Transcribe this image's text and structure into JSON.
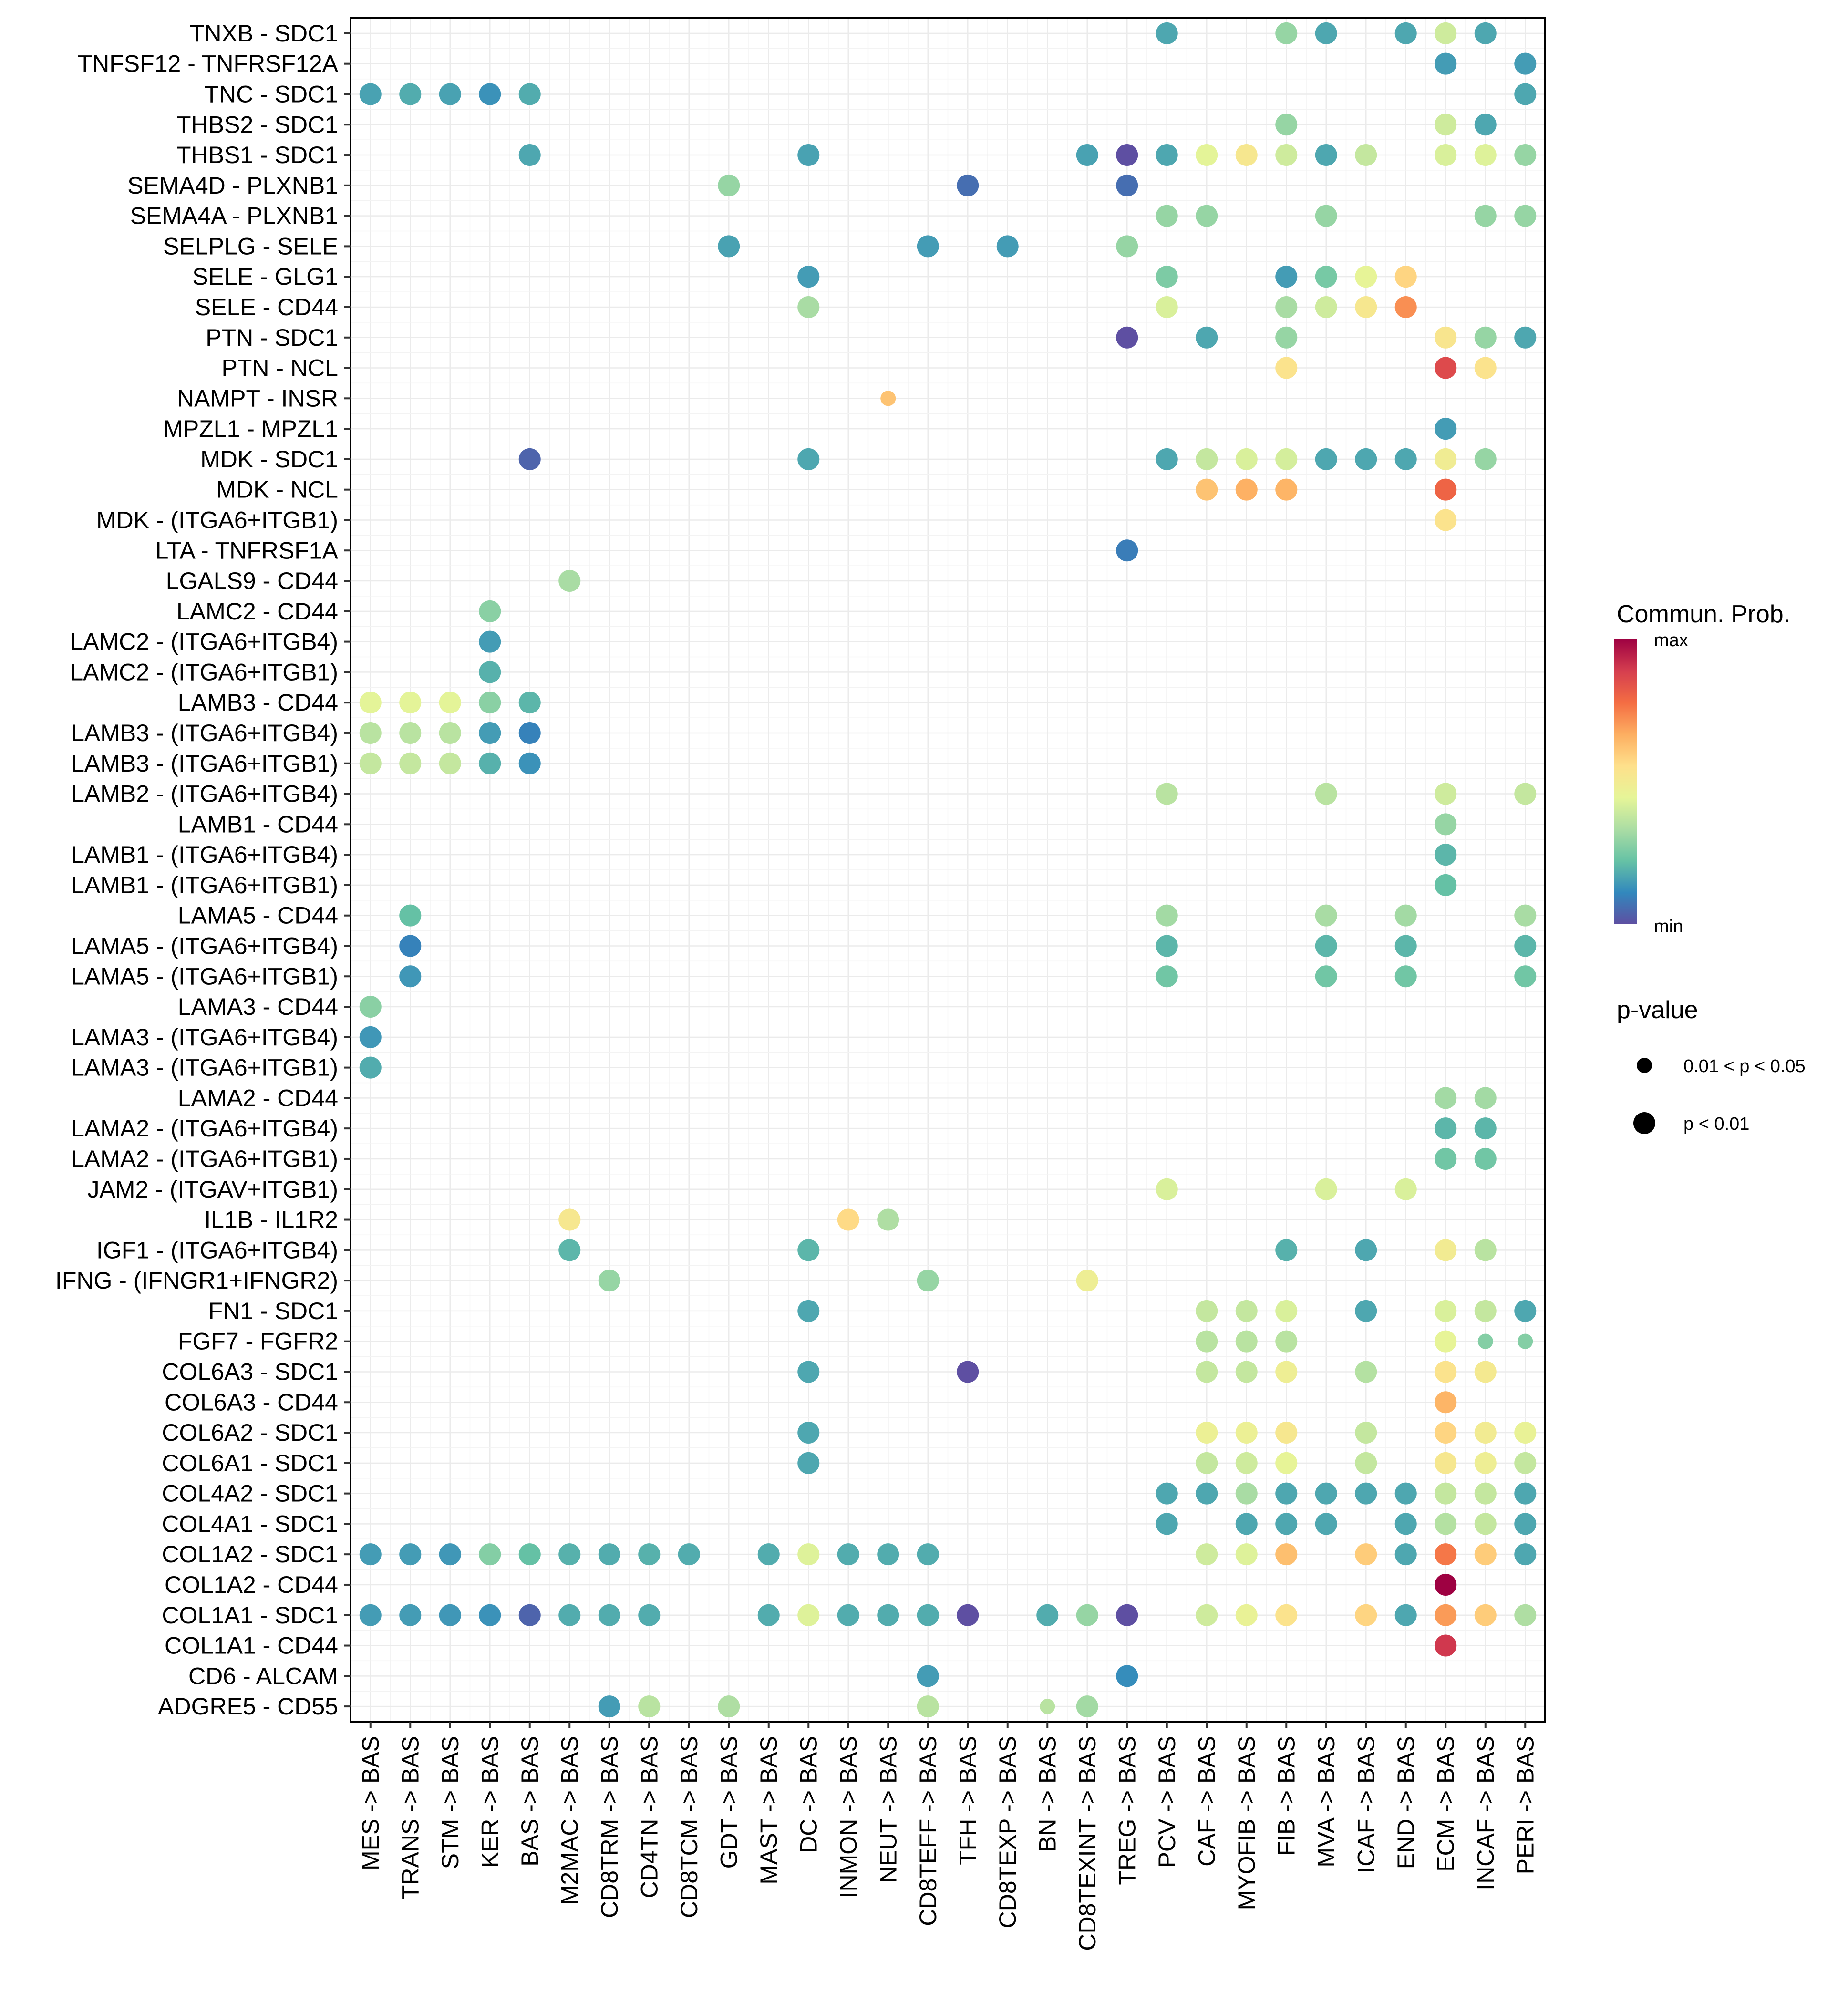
{
  "chart_data": {
    "type": "scatter",
    "subtype": "dot-matrix (bubble heatmap)",
    "title": "",
    "xlabel": "",
    "ylabel": "",
    "grid": true,
    "x_categories": [
      "MES -> BAS",
      "TRANS -> BAS",
      "STM -> BAS",
      "KER -> BAS",
      "BAS -> BAS",
      "M2MAC -> BAS",
      "CD8TRM -> BAS",
      "CD4TN -> BAS",
      "CD8TCM -> BAS",
      "GDT -> BAS",
      "MAST -> BAS",
      "DC -> BAS",
      "INMON -> BAS",
      "NEUT -> BAS",
      "CD8TEFF -> BAS",
      "TFH -> BAS",
      "CD8TEXP -> BAS",
      "BN -> BAS",
      "CD8TEXINT -> BAS",
      "TREG -> BAS",
      "PCV -> BAS",
      "CAF -> BAS",
      "MYOFIB -> BAS",
      "FIB -> BAS",
      "MVA -> BAS",
      "ICAF -> BAS",
      "END -> BAS",
      "ECM -> BAS",
      "INCAF -> BAS",
      "PERI -> BAS"
    ],
    "y_categories": [
      "TNXB - SDC1",
      "TNFSF12 - TNFRSF12A",
      "TNC - SDC1",
      "THBS2 - SDC1",
      "THBS1 - SDC1",
      "SEMA4D - PLXNB1",
      "SEMA4A - PLXNB1",
      "SELPLG - SELE",
      "SELE - GLG1",
      "SELE - CD44",
      "PTN - SDC1",
      "PTN - NCL",
      "NAMPT - INSR",
      "MPZL1 - MPZL1",
      "MDK - SDC1",
      "MDK - NCL",
      "MDK - (ITGA6+ITGB1)",
      "LTA - TNFRSF1A",
      "LGALS9 - CD44",
      "LAMC2 - CD44",
      "LAMC2 - (ITGA6+ITGB4)",
      "LAMC2 - (ITGA6+ITGB1)",
      "LAMB3 - CD44",
      "LAMB3 - (ITGA6+ITGB4)",
      "LAMB3 - (ITGA6+ITGB1)",
      "LAMB2 - (ITGA6+ITGB4)",
      "LAMB1 - CD44",
      "LAMB1 - (ITGA6+ITGB4)",
      "LAMB1 - (ITGA6+ITGB1)",
      "LAMA5 - CD44",
      "LAMA5 - (ITGA6+ITGB4)",
      "LAMA5 - (ITGA6+ITGB1)",
      "LAMA3 - CD44",
      "LAMA3 - (ITGA6+ITGB4)",
      "LAMA3 - (ITGA6+ITGB1)",
      "LAMA2 - CD44",
      "LAMA2 - (ITGA6+ITGB4)",
      "LAMA2 - (ITGA6+ITGB1)",
      "JAM2 - (ITGAV+ITGB1)",
      "IL1B - IL1R2",
      "IGF1 - (ITGA6+ITGB4)",
      "IFNG - (IFNGR1+IFNGR2)",
      "FN1 - SDC1",
      "FGF7 - FGFR2",
      "COL6A3 - SDC1",
      "COL6A3 - CD44",
      "COL6A2 - SDC1",
      "COL6A1 - SDC1",
      "COL4A2 - SDC1",
      "COL4A1 - SDC1",
      "COL1A2 - SDC1",
      "COL1A2 - CD44",
      "COL1A1 - SDC1",
      "COL1A1 - CD44",
      "CD6 - ALCAM",
      "ADGRE5 - CD55"
    ],
    "value_encoding": "commun_prob normalized 0 (min) to 1 (max), read from color",
    "pvalue_encoding": "1 = p < 0.01 (large dot), 0 = 0.01 < p < 0.05 (small dot)",
    "points": [
      [
        0,
        20,
        0.17,
        1
      ],
      [
        0,
        23,
        0.3,
        1
      ],
      [
        0,
        24,
        0.17,
        1
      ],
      [
        0,
        26,
        0.17,
        1
      ],
      [
        0,
        27,
        0.4,
        1
      ],
      [
        0,
        28,
        0.17,
        1
      ],
      [
        1,
        27,
        0.15,
        1
      ],
      [
        1,
        29,
        0.15,
        1
      ],
      [
        2,
        0,
        0.16,
        1
      ],
      [
        2,
        1,
        0.18,
        1
      ],
      [
        2,
        2,
        0.16,
        1
      ],
      [
        2,
        3,
        0.13,
        1
      ],
      [
        2,
        4,
        0.18,
        1
      ],
      [
        2,
        29,
        0.17,
        1
      ],
      [
        3,
        23,
        0.3,
        1
      ],
      [
        3,
        27,
        0.4,
        1
      ],
      [
        3,
        28,
        0.17,
        1
      ],
      [
        4,
        4,
        0.17,
        1
      ],
      [
        4,
        11,
        0.16,
        1
      ],
      [
        4,
        18,
        0.16,
        1
      ],
      [
        4,
        19,
        0.0,
        1
      ],
      [
        4,
        20,
        0.17,
        1
      ],
      [
        4,
        21,
        0.44,
        1
      ],
      [
        4,
        22,
        0.52,
        1
      ],
      [
        4,
        23,
        0.4,
        1
      ],
      [
        4,
        24,
        0.17,
        1
      ],
      [
        4,
        25,
        0.38,
        1
      ],
      [
        4,
        27,
        0.42,
        1
      ],
      [
        4,
        28,
        0.43,
        1
      ],
      [
        4,
        29,
        0.3,
        1
      ],
      [
        5,
        9,
        0.3,
        1
      ],
      [
        5,
        15,
        0.06,
        1
      ],
      [
        5,
        19,
        0.06,
        1
      ],
      [
        6,
        20,
        0.3,
        1
      ],
      [
        6,
        21,
        0.3,
        1
      ],
      [
        6,
        24,
        0.3,
        1
      ],
      [
        6,
        28,
        0.3,
        1
      ],
      [
        6,
        29,
        0.3,
        1
      ],
      [
        7,
        9,
        0.16,
        1
      ],
      [
        7,
        14,
        0.15,
        1
      ],
      [
        7,
        16,
        0.15,
        1
      ],
      [
        7,
        19,
        0.3,
        1
      ],
      [
        8,
        11,
        0.15,
        1
      ],
      [
        8,
        20,
        0.26,
        1
      ],
      [
        8,
        23,
        0.15,
        1
      ],
      [
        8,
        24,
        0.25,
        1
      ],
      [
        8,
        25,
        0.45,
        1
      ],
      [
        8,
        26,
        0.58,
        1
      ],
      [
        9,
        11,
        0.33,
        1
      ],
      [
        9,
        20,
        0.42,
        1
      ],
      [
        9,
        23,
        0.33,
        1
      ],
      [
        9,
        24,
        0.4,
        1
      ],
      [
        9,
        25,
        0.52,
        1
      ],
      [
        9,
        26,
        0.72,
        1
      ],
      [
        10,
        19,
        0.0,
        1
      ],
      [
        10,
        21,
        0.17,
        1
      ],
      [
        10,
        23,
        0.3,
        1
      ],
      [
        10,
        27,
        0.53,
        1
      ],
      [
        10,
        28,
        0.3,
        1
      ],
      [
        10,
        29,
        0.17,
        1
      ],
      [
        11,
        23,
        0.54,
        1
      ],
      [
        11,
        27,
        0.86,
        1
      ],
      [
        11,
        28,
        0.54,
        1
      ],
      [
        12,
        13,
        0.62,
        0
      ],
      [
        13,
        27,
        0.15,
        1
      ],
      [
        14,
        4,
        0.04,
        1
      ],
      [
        14,
        11,
        0.17,
        1
      ],
      [
        14,
        20,
        0.17,
        1
      ],
      [
        14,
        21,
        0.38,
        1
      ],
      [
        14,
        22,
        0.42,
        1
      ],
      [
        14,
        23,
        0.41,
        1
      ],
      [
        14,
        24,
        0.17,
        1
      ],
      [
        14,
        25,
        0.17,
        1
      ],
      [
        14,
        26,
        0.17,
        1
      ],
      [
        14,
        27,
        0.49,
        1
      ],
      [
        14,
        28,
        0.3,
        1
      ],
      [
        15,
        21,
        0.62,
        1
      ],
      [
        15,
        22,
        0.66,
        1
      ],
      [
        15,
        23,
        0.65,
        1
      ],
      [
        15,
        27,
        0.8,
        1
      ],
      [
        16,
        27,
        0.54,
        1
      ],
      [
        17,
        19,
        0.09,
        1
      ],
      [
        18,
        5,
        0.33,
        1
      ],
      [
        19,
        3,
        0.28,
        1
      ],
      [
        20,
        3,
        0.15,
        1
      ],
      [
        21,
        3,
        0.19,
        1
      ],
      [
        22,
        0,
        0.44,
        1
      ],
      [
        22,
        1,
        0.44,
        1
      ],
      [
        22,
        2,
        0.44,
        1
      ],
      [
        22,
        3,
        0.28,
        1
      ],
      [
        22,
        4,
        0.2,
        1
      ],
      [
        23,
        0,
        0.36,
        1
      ],
      [
        23,
        1,
        0.36,
        1
      ],
      [
        23,
        2,
        0.36,
        1
      ],
      [
        23,
        3,
        0.15,
        1
      ],
      [
        23,
        4,
        0.1,
        1
      ],
      [
        24,
        0,
        0.38,
        1
      ],
      [
        24,
        1,
        0.38,
        1
      ],
      [
        24,
        2,
        0.38,
        1
      ],
      [
        24,
        3,
        0.19,
        1
      ],
      [
        24,
        4,
        0.13,
        1
      ],
      [
        25,
        20,
        0.36,
        1
      ],
      [
        25,
        24,
        0.36,
        1
      ],
      [
        25,
        27,
        0.4,
        1
      ],
      [
        25,
        29,
        0.38,
        1
      ],
      [
        26,
        27,
        0.3,
        1
      ],
      [
        27,
        27,
        0.2,
        1
      ],
      [
        28,
        27,
        0.22,
        1
      ],
      [
        29,
        1,
        0.22,
        1
      ],
      [
        29,
        20,
        0.32,
        1
      ],
      [
        29,
        24,
        0.33,
        1
      ],
      [
        29,
        26,
        0.32,
        1
      ],
      [
        29,
        29,
        0.33,
        1
      ],
      [
        30,
        1,
        0.1,
        1
      ],
      [
        30,
        20,
        0.2,
        1
      ],
      [
        30,
        24,
        0.2,
        1
      ],
      [
        30,
        26,
        0.2,
        1
      ],
      [
        30,
        29,
        0.2,
        1
      ],
      [
        31,
        1,
        0.14,
        1
      ],
      [
        31,
        20,
        0.24,
        1
      ],
      [
        31,
        24,
        0.24,
        1
      ],
      [
        31,
        26,
        0.24,
        1
      ],
      [
        31,
        29,
        0.24,
        1
      ],
      [
        32,
        0,
        0.28,
        1
      ],
      [
        33,
        0,
        0.14,
        1
      ],
      [
        34,
        0,
        0.18,
        1
      ],
      [
        35,
        27,
        0.32,
        1
      ],
      [
        35,
        28,
        0.32,
        1
      ],
      [
        36,
        27,
        0.2,
        1
      ],
      [
        36,
        28,
        0.2,
        1
      ],
      [
        37,
        27,
        0.24,
        1
      ],
      [
        37,
        28,
        0.24,
        1
      ],
      [
        38,
        20,
        0.42,
        1
      ],
      [
        38,
        24,
        0.42,
        1
      ],
      [
        38,
        26,
        0.42,
        1
      ],
      [
        39,
        5,
        0.52,
        1
      ],
      [
        39,
        12,
        0.57,
        1
      ],
      [
        39,
        13,
        0.34,
        1
      ],
      [
        40,
        5,
        0.2,
        1
      ],
      [
        40,
        11,
        0.2,
        1
      ],
      [
        40,
        23,
        0.19,
        1
      ],
      [
        40,
        25,
        0.17,
        1
      ],
      [
        40,
        27,
        0.5,
        1
      ],
      [
        40,
        28,
        0.36,
        1
      ],
      [
        41,
        6,
        0.3,
        1
      ],
      [
        41,
        14,
        0.3,
        1
      ],
      [
        41,
        18,
        0.48,
        1
      ],
      [
        42,
        11,
        0.17,
        1
      ],
      [
        42,
        21,
        0.38,
        1
      ],
      [
        42,
        22,
        0.38,
        1
      ],
      [
        42,
        23,
        0.42,
        1
      ],
      [
        42,
        25,
        0.17,
        1
      ],
      [
        42,
        27,
        0.42,
        1
      ],
      [
        42,
        28,
        0.38,
        1
      ],
      [
        42,
        29,
        0.17,
        1
      ],
      [
        43,
        21,
        0.36,
        1
      ],
      [
        43,
        22,
        0.36,
        1
      ],
      [
        43,
        23,
        0.36,
        1
      ],
      [
        43,
        27,
        0.45,
        1
      ],
      [
        43,
        28,
        0.27,
        0
      ],
      [
        43,
        29,
        0.27,
        0
      ],
      [
        44,
        11,
        0.17,
        1
      ],
      [
        44,
        15,
        0.0,
        1
      ],
      [
        44,
        21,
        0.38,
        1
      ],
      [
        44,
        22,
        0.38,
        1
      ],
      [
        44,
        23,
        0.48,
        1
      ],
      [
        44,
        25,
        0.35,
        1
      ],
      [
        44,
        27,
        0.54,
        1
      ],
      [
        44,
        28,
        0.51,
        1
      ],
      [
        45,
        27,
        0.65,
        1
      ],
      [
        46,
        11,
        0.17,
        1
      ],
      [
        46,
        21,
        0.47,
        1
      ],
      [
        46,
        22,
        0.47,
        1
      ],
      [
        46,
        23,
        0.52,
        1
      ],
      [
        46,
        25,
        0.38,
        1
      ],
      [
        46,
        27,
        0.58,
        1
      ],
      [
        46,
        28,
        0.5,
        1
      ],
      [
        46,
        29,
        0.46,
        1
      ],
      [
        47,
        11,
        0.17,
        1
      ],
      [
        47,
        21,
        0.38,
        1
      ],
      [
        47,
        22,
        0.4,
        1
      ],
      [
        47,
        23,
        0.45,
        1
      ],
      [
        47,
        25,
        0.38,
        1
      ],
      [
        47,
        27,
        0.52,
        1
      ],
      [
        47,
        28,
        0.48,
        1
      ],
      [
        47,
        29,
        0.38,
        1
      ],
      [
        48,
        20,
        0.17,
        1
      ],
      [
        48,
        21,
        0.17,
        1
      ],
      [
        48,
        22,
        0.33,
        1
      ],
      [
        48,
        23,
        0.17,
        1
      ],
      [
        48,
        24,
        0.17,
        1
      ],
      [
        48,
        25,
        0.17,
        1
      ],
      [
        48,
        26,
        0.17,
        1
      ],
      [
        48,
        27,
        0.38,
        1
      ],
      [
        48,
        28,
        0.38,
        1
      ],
      [
        48,
        29,
        0.17,
        1
      ],
      [
        49,
        20,
        0.17,
        1
      ],
      [
        49,
        22,
        0.17,
        1
      ],
      [
        49,
        23,
        0.17,
        1
      ],
      [
        49,
        24,
        0.17,
        1
      ],
      [
        49,
        26,
        0.17,
        1
      ],
      [
        49,
        27,
        0.35,
        1
      ],
      [
        49,
        28,
        0.38,
        1
      ],
      [
        49,
        29,
        0.17,
        1
      ],
      [
        50,
        0,
        0.15,
        1
      ],
      [
        50,
        1,
        0.15,
        1
      ],
      [
        50,
        2,
        0.14,
        1
      ],
      [
        50,
        3,
        0.27,
        1
      ],
      [
        50,
        4,
        0.22,
        1
      ],
      [
        50,
        5,
        0.19,
        1
      ],
      [
        50,
        6,
        0.18,
        1
      ],
      [
        50,
        7,
        0.19,
        1
      ],
      [
        50,
        8,
        0.18,
        1
      ],
      [
        50,
        10,
        0.18,
        1
      ],
      [
        50,
        11,
        0.43,
        1
      ],
      [
        50,
        12,
        0.18,
        1
      ],
      [
        50,
        13,
        0.18,
        1
      ],
      [
        50,
        14,
        0.18,
        1
      ],
      [
        50,
        21,
        0.4,
        1
      ],
      [
        50,
        22,
        0.43,
        1
      ],
      [
        50,
        23,
        0.63,
        1
      ],
      [
        50,
        25,
        0.6,
        1
      ],
      [
        50,
        26,
        0.17,
        1
      ],
      [
        50,
        27,
        0.76,
        1
      ],
      [
        50,
        28,
        0.6,
        1
      ],
      [
        50,
        29,
        0.17,
        1
      ],
      [
        51,
        27,
        1.0,
        1
      ],
      [
        52,
        0,
        0.15,
        1
      ],
      [
        52,
        1,
        0.15,
        1
      ],
      [
        52,
        2,
        0.14,
        1
      ],
      [
        52,
        3,
        0.13,
        1
      ],
      [
        52,
        4,
        0.04,
        1
      ],
      [
        52,
        5,
        0.18,
        1
      ],
      [
        52,
        6,
        0.18,
        1
      ],
      [
        52,
        7,
        0.18,
        1
      ],
      [
        52,
        10,
        0.18,
        1
      ],
      [
        52,
        11,
        0.43,
        1
      ],
      [
        52,
        12,
        0.18,
        1
      ],
      [
        52,
        13,
        0.18,
        1
      ],
      [
        52,
        14,
        0.18,
        1
      ],
      [
        52,
        15,
        0.0,
        1
      ],
      [
        52,
        17,
        0.18,
        1
      ],
      [
        52,
        18,
        0.3,
        1
      ],
      [
        52,
        19,
        0.0,
        1
      ],
      [
        52,
        21,
        0.4,
        1
      ],
      [
        52,
        22,
        0.46,
        1
      ],
      [
        52,
        23,
        0.54,
        1
      ],
      [
        52,
        25,
        0.58,
        1
      ],
      [
        52,
        26,
        0.17,
        1
      ],
      [
        52,
        27,
        0.7,
        1
      ],
      [
        52,
        28,
        0.6,
        1
      ],
      [
        52,
        29,
        0.34,
        1
      ],
      [
        53,
        27,
        0.9,
        1
      ],
      [
        54,
        14,
        0.15,
        1
      ],
      [
        54,
        19,
        0.12,
        1
      ],
      [
        55,
        6,
        0.15,
        1
      ],
      [
        55,
        7,
        0.36,
        1
      ],
      [
        55,
        9,
        0.34,
        1
      ],
      [
        55,
        14,
        0.36,
        1
      ],
      [
        55,
        17,
        0.36,
        0
      ],
      [
        55,
        18,
        0.32,
        1
      ]
    ],
    "legend": {
      "color": {
        "title": "Commun. Prob.",
        "max_label": "max",
        "min_label": "min",
        "palette": "Spectral (reversed)"
      },
      "size": {
        "title": "p-value",
        "items": [
          "0.01 < p < 0.05",
          "p < 0.01"
        ]
      },
      "position": "right"
    }
  },
  "palette_stops": [
    "#5E4FA2",
    "#3288BD",
    "#66C2A5",
    "#ABDDA4",
    "#E6F598",
    "#FEE08B",
    "#FDAE61",
    "#F46D43",
    "#D53E4F",
    "#9E0142"
  ]
}
